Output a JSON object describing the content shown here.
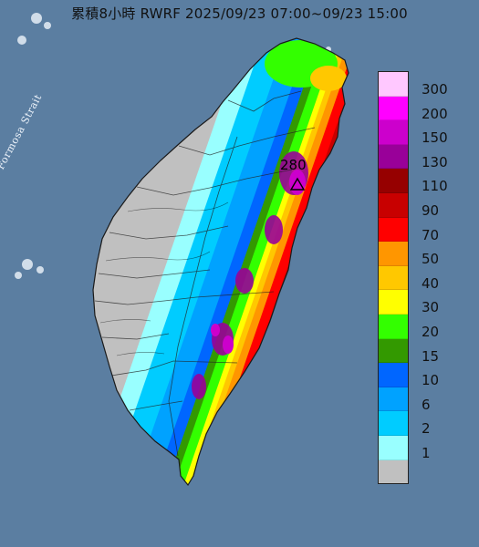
{
  "title": "累積8小時 RWRF 2025/09/23 07:00~09/23 15:00",
  "strait_label": "Formosa Strait",
  "max_marker": {
    "label": "280",
    "value": 280
  },
  "legend": {
    "items": [
      {
        "label": "300",
        "color": "#ffc8ff"
      },
      {
        "label": "200",
        "color": "#ff00ff"
      },
      {
        "label": "150",
        "color": "#cc00cc"
      },
      {
        "label": "130",
        "color": "#990099"
      },
      {
        "label": "110",
        "color": "#960000"
      },
      {
        "label": "90",
        "color": "#c80000"
      },
      {
        "label": "70",
        "color": "#ff0000"
      },
      {
        "label": "50",
        "color": "#ff9600"
      },
      {
        "label": "40",
        "color": "#ffc800"
      },
      {
        "label": "30",
        "color": "#ffff00"
      },
      {
        "label": "20",
        "color": "#33ff00"
      },
      {
        "label": "15",
        "color": "#339900"
      },
      {
        "label": "10",
        "color": "#0066ff"
      },
      {
        "label": "6",
        "color": "#00a2ff"
      },
      {
        "label": "2",
        "color": "#00ccff"
      },
      {
        "label": "1",
        "color": "#99ffff"
      },
      {
        "label": "",
        "color": "#c0c0c0"
      }
    ]
  },
  "colors": {
    "sea": "#5b7ea1",
    "land_dry": "#c0c0c0"
  }
}
